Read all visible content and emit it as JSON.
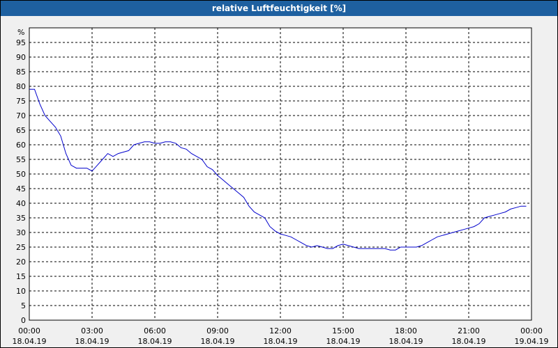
{
  "window": {
    "title": "relative Luftfeuchtigkeit [%]"
  },
  "chart_data": {
    "type": "line",
    "title": "relative Luftfeuchtigkeit [%]",
    "ylabel": "%",
    "xlabel": "",
    "ylim": [
      0,
      100
    ],
    "yticks": [
      0,
      5,
      10,
      15,
      20,
      25,
      30,
      35,
      40,
      45,
      50,
      55,
      60,
      65,
      70,
      75,
      80,
      85,
      90,
      95
    ],
    "xlim": [
      "18.04.19 00:00",
      "19.04.19 00:00"
    ],
    "xticks": [
      {
        "time": "00:00",
        "date": "18.04.19"
      },
      {
        "time": "03:00",
        "date": "18.04.19"
      },
      {
        "time": "06:00",
        "date": "18.04.19"
      },
      {
        "time": "09:00",
        "date": "18.04.19"
      },
      {
        "time": "12:00",
        "date": "18.04.19"
      },
      {
        "time": "15:00",
        "date": "18.04.19"
      },
      {
        "time": "18:00",
        "date": "18.04.19"
      },
      {
        "time": "21:00",
        "date": "18.04.19"
      },
      {
        "time": "00:00",
        "date": "19.04.19"
      }
    ],
    "grid": true,
    "series": [
      {
        "color": "#0000cc",
        "x": [
          "00:00",
          "00:15",
          "00:30",
          "00:45",
          "01:00",
          "01:15",
          "01:30",
          "01:45",
          "02:00",
          "02:15",
          "02:30",
          "02:45",
          "03:00",
          "03:15",
          "03:30",
          "03:45",
          "04:00",
          "04:15",
          "04:30",
          "04:45",
          "05:00",
          "05:15",
          "05:30",
          "05:45",
          "06:00",
          "06:15",
          "06:30",
          "06:45",
          "07:00",
          "07:15",
          "07:30",
          "07:45",
          "08:00",
          "08:15",
          "08:30",
          "08:45",
          "09:00",
          "09:15",
          "09:30",
          "09:45",
          "10:00",
          "10:15",
          "10:30",
          "10:45",
          "11:00",
          "11:15",
          "11:30",
          "11:45",
          "12:00",
          "12:15",
          "12:30",
          "12:45",
          "13:00",
          "13:15",
          "13:30",
          "13:45",
          "14:00",
          "14:15",
          "14:30",
          "14:45",
          "15:00",
          "15:15",
          "15:30",
          "15:45",
          "16:00",
          "16:15",
          "16:30",
          "16:45",
          "17:00",
          "17:15",
          "17:30",
          "17:45",
          "18:00",
          "18:15",
          "18:30",
          "18:45",
          "19:00",
          "19:15",
          "19:30",
          "19:45",
          "20:00",
          "20:15",
          "20:30",
          "20:45",
          "21:00",
          "21:15",
          "21:30",
          "21:45",
          "22:00",
          "22:15",
          "22:30",
          "22:45",
          "23:00",
          "23:15",
          "23:30",
          "23:45"
        ],
        "values": [
          79,
          79,
          74,
          70,
          68,
          66,
          63,
          57,
          53,
          52,
          52,
          52,
          51,
          53,
          55,
          57,
          56,
          57,
          57.5,
          58,
          60,
          60.5,
          61,
          61,
          60.5,
          60.5,
          61,
          61,
          60.5,
          59,
          58.5,
          57,
          56,
          55,
          52.5,
          51.5,
          49.5,
          48,
          46.5,
          45,
          43.5,
          42,
          39,
          37,
          36,
          35,
          32,
          30.5,
          29.5,
          29,
          28.5,
          27.5,
          26.5,
          25.5,
          25,
          25.5,
          25,
          24.5,
          24.5,
          25.5,
          26,
          25.5,
          25,
          24.5,
          24.5,
          24.5,
          24.5,
          24.5,
          24.5,
          24,
          24,
          25,
          25,
          25,
          25,
          25.5,
          26.5,
          27.5,
          28.5,
          29,
          29.5,
          30,
          30.5,
          31,
          31.5,
          32,
          33,
          35,
          35.5,
          36,
          36.5,
          37,
          38,
          38.5,
          39,
          39
        ]
      }
    ]
  }
}
